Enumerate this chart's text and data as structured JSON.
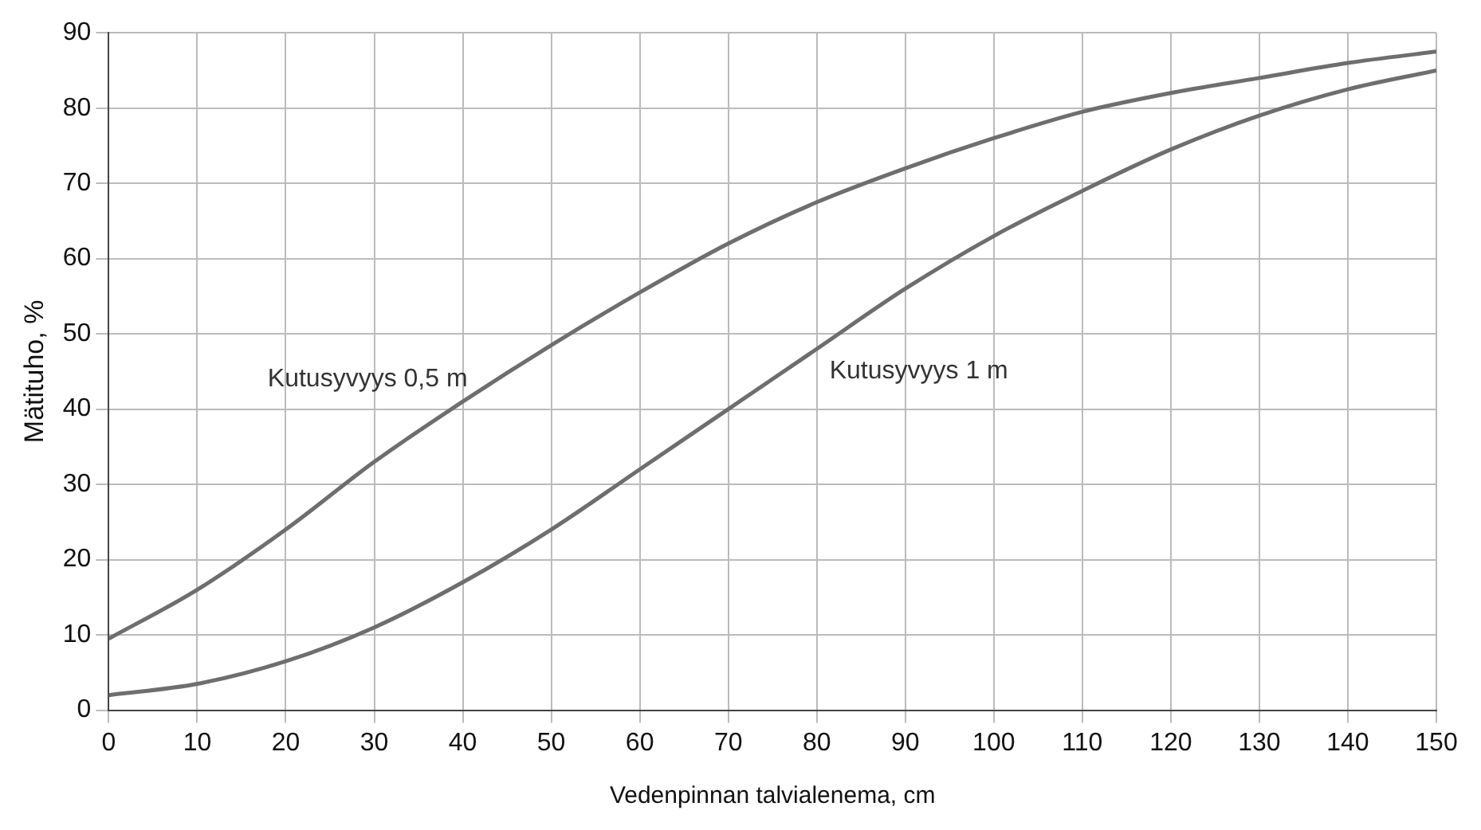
{
  "chart_data": {
    "type": "line",
    "xlabel": "Vedenpinnan talvialenema, cm",
    "ylabel": "Mätituho, %",
    "x": [
      0,
      10,
      20,
      30,
      40,
      50,
      60,
      70,
      80,
      90,
      100,
      110,
      120,
      130,
      140,
      150
    ],
    "series": [
      {
        "name": "Kutusyvyys 0,5 m",
        "color": "#6e6e6e",
        "values": [
          9.5,
          16,
          24,
          33,
          41,
          48.5,
          55.5,
          62,
          67.5,
          72,
          76,
          79.5,
          82,
          84,
          86,
          87.5
        ]
      },
      {
        "name": "Kutusyvyys 1 m",
        "color": "#6e6e6e",
        "values": [
          2,
          3.5,
          6.5,
          11,
          17,
          24,
          32,
          40,
          48,
          56,
          63,
          69,
          74.5,
          79,
          82.5,
          85
        ]
      }
    ],
    "xlim": [
      0,
      150
    ],
    "xticks": [
      0,
      10,
      20,
      30,
      40,
      50,
      60,
      70,
      80,
      90,
      100,
      110,
      120,
      130,
      140,
      150
    ],
    "ylim": [
      0,
      90
    ],
    "yticks": [
      0,
      10,
      20,
      30,
      40,
      50,
      60,
      70,
      80,
      90
    ],
    "grid": true,
    "legend": false,
    "marker": "none",
    "line_style": "solid"
  }
}
